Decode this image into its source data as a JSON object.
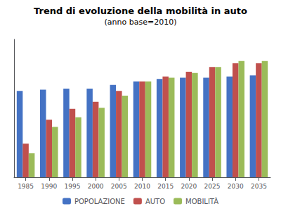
{
  "chart_data": {
    "type": "bar",
    "title": "Trend di evoluzione della mobilità in auto",
    "subtitle": "(anno base=2010)",
    "categories": [
      "1985",
      "1990",
      "1995",
      "2000",
      "2005",
      "2010",
      "2015",
      "2020",
      "2025",
      "2030",
      "2035"
    ],
    "series": [
      {
        "name": "POPOLAZIONE",
        "color": "#4472C4",
        "values": [
          0.72,
          0.73,
          0.74,
          0.74,
          0.77,
          0.8,
          0.82,
          0.83,
          0.83,
          0.84,
          0.85
        ]
      },
      {
        "name": "AUTO",
        "color": "#C0504D",
        "values": [
          0.28,
          0.48,
          0.57,
          0.63,
          0.72,
          0.8,
          0.84,
          0.88,
          0.92,
          0.95,
          0.95
        ]
      },
      {
        "name": "MOBILITÀ",
        "color": "#9BBB59",
        "values": [
          0.2,
          0.42,
          0.5,
          0.58,
          0.68,
          0.8,
          0.83,
          0.87,
          0.92,
          0.97,
          0.97
        ]
      }
    ],
    "ylim": [
      0,
      1.15
    ],
    "yticks": [],
    "grid": false,
    "legend": "bottom",
    "tick_labels": "x"
  }
}
